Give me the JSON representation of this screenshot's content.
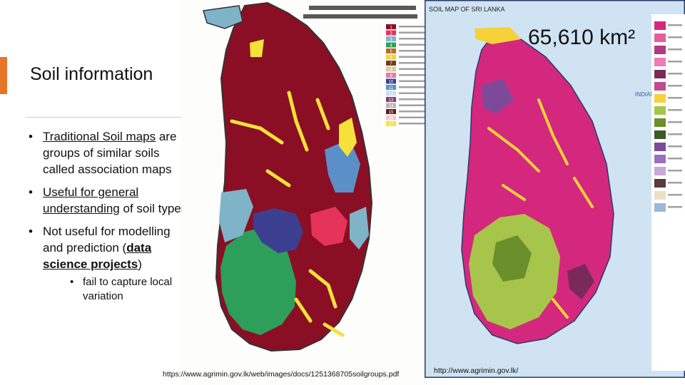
{
  "slide": {
    "title": "Soil information",
    "bullets": {
      "b1": {
        "link": "Traditional Soil maps",
        "rest": " are groups of similar soils called association maps"
      },
      "b2": {
        "link": "Useful for general understanding",
        "rest": " of soil types"
      },
      "b3": {
        "pre": "Not useful for modelling and prediction (",
        "strong": "data science projects",
        "post": ")"
      },
      "sub1": "fail to capture local variation"
    }
  },
  "map_left": {
    "legend_numbers": [
      "1",
      "2",
      "3",
      "4",
      "5",
      "6",
      "7",
      "8",
      "9",
      "10",
      "11",
      "12",
      "13",
      "14",
      "15",
      "16",
      "17"
    ],
    "legend_colors": [
      "#8b0f24",
      "#e6335a",
      "#7fb3c8",
      "#2e9e5b",
      "#b86a2a",
      "#f0d23a",
      "#7a3c1a",
      "#dcc9a0",
      "#e87aa6",
      "#3c3f8f",
      "#5a8fc8",
      "#c9e0ea",
      "#8c3b6f",
      "#b5b5b5",
      "#6b1a1a",
      "#f5c6d3",
      "#f4e23a"
    ],
    "source_url": "https://www.agrimin.gov.lk/web/images/docs/1251368705soilgroups.pdf"
  },
  "map_right": {
    "map_title": "SOIL MAP OF SRI LANKA",
    "area_text": "65,610 km²",
    "indian_ocean": "INDIAN OCEAN",
    "source_url": "http://www.agrimin.gov.lk/",
    "legend_colors": [
      "#d4287e",
      "#e85ba0",
      "#b03a86",
      "#f07ab8",
      "#7a2a5a",
      "#c04b8e",
      "#f5d23a",
      "#a7c54a",
      "#6b8f2a",
      "#3a5a2a",
      "#7d4a9a",
      "#9a6fbf",
      "#c8a8d8",
      "#5a3a3a",
      "#e8e0c8",
      "#9ab8d8"
    ]
  },
  "colors": {
    "accent": "#e8742a"
  }
}
